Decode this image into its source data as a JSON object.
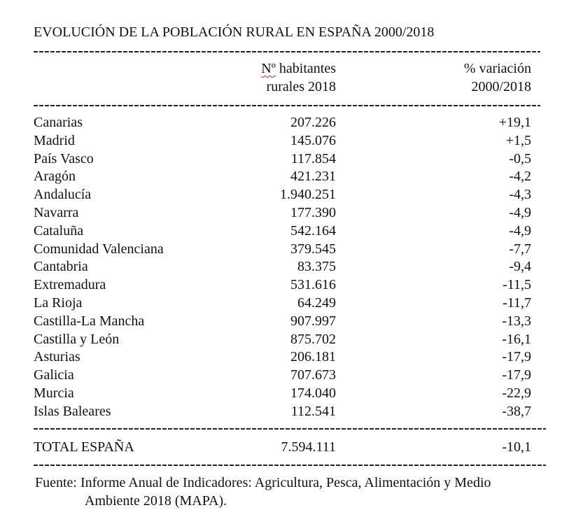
{
  "title": "EVOLUCIÓN DE LA POBLACIÓN RURAL EN ESPAÑA 2000/2018",
  "header": {
    "col2_prefix": "Nº",
    "col2_line1": " habitantes",
    "col2_line2": "rurales 2018",
    "col3_line1": "% variación",
    "col3_line2": "2000/2018"
  },
  "rows": [
    {
      "region": "Canarias",
      "habitantes": "207.226",
      "variacion": "+19,1"
    },
    {
      "region": "Madrid",
      "habitantes": "145.076",
      "variacion": "+1,5"
    },
    {
      "region": "País Vasco",
      "habitantes": "117.854",
      "variacion": "-0,5"
    },
    {
      "region": "Aragón",
      "habitantes": "421.231",
      "variacion": "-4,2"
    },
    {
      "region": "Andalucía",
      "habitantes": "1.940.251",
      "variacion": "-4,3"
    },
    {
      "region": "Navarra",
      "habitantes": "177.390",
      "variacion": "-4,9"
    },
    {
      "region": "Cataluña",
      "habitantes": "542.164",
      "variacion": "-4,9"
    },
    {
      "region": "Comunidad Valenciana",
      "habitantes": "379.545",
      "variacion": "-7,7"
    },
    {
      "region": "Cantabria",
      "habitantes": "83.375",
      "variacion": "-9,4"
    },
    {
      "region": "Extremadura",
      "habitantes": "531.616",
      "variacion": "-11,5"
    },
    {
      "region": "La Rioja",
      "habitantes": "64.249",
      "variacion": "-11,7"
    },
    {
      "region": "Castilla-La Mancha",
      "habitantes": "907.997",
      "variacion": "-13,3"
    },
    {
      "region": "Castilla y León",
      "habitantes": "875.702",
      "variacion": "-16,1"
    },
    {
      "region": "Asturias",
      "habitantes": "206.181",
      "variacion": "-17,9"
    },
    {
      "region": "Galicia",
      "habitantes": "707.673",
      "variacion": "-17,9"
    },
    {
      "region": "Murcia",
      "habitantes": "174.040",
      "variacion": "-22,9"
    },
    {
      "region": "Islas Baleares",
      "habitantes": "112.541",
      "variacion": "-38,7"
    }
  ],
  "total": {
    "region": "TOTAL ESPAÑA",
    "habitantes": "7.594.111",
    "variacion": "-10,1"
  },
  "source": {
    "line1": "Fuente: Informe Anual de Indicadores: Agricultura, Pesca, Alimentación y Medio",
    "line2": "Ambiente 2018 (MAPA)."
  }
}
